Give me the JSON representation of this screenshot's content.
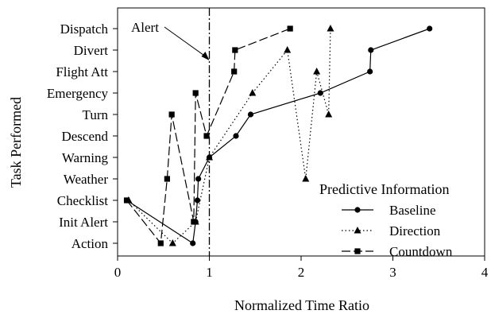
{
  "chart_data": {
    "type": "line",
    "xlabel": "Normalized Time Ratio",
    "ylabel": "Task Performed",
    "xlim": [
      0,
      4
    ],
    "x_ticks": [
      0,
      1,
      2,
      3,
      4
    ],
    "x_tick_labels": [
      "0",
      "1",
      "2",
      "3",
      "4"
    ],
    "categories": [
      "Action",
      "Init Alert",
      "Checklist",
      "Weather",
      "Warning",
      "Descend",
      "Turn",
      "Emergency",
      "Flight Att",
      "Divert",
      "Dispatch"
    ],
    "grid": false,
    "legend": {
      "title": "Predictive Information",
      "placement": "bottom-right"
    },
    "reference_line": {
      "x": 1.0,
      "style": "dash-dot",
      "label": "Alert"
    },
    "series": [
      {
        "name": "Baseline",
        "marker": "circle",
        "line_style": "solid",
        "points": [
          {
            "x": 0.1,
            "y": "Checklist"
          },
          {
            "x": 0.82,
            "y": "Action"
          },
          {
            "x": 0.85,
            "y": "Init Alert"
          },
          {
            "x": 0.87,
            "y": "Checklist"
          },
          {
            "x": 0.88,
            "y": "Weather"
          },
          {
            "x": 1.0,
            "y": "Warning"
          },
          {
            "x": 1.29,
            "y": "Descend"
          },
          {
            "x": 1.45,
            "y": "Turn"
          },
          {
            "x": 2.21,
            "y": "Emergency"
          },
          {
            "x": 2.75,
            "y": "Flight Att"
          },
          {
            "x": 2.76,
            "y": "Divert"
          },
          {
            "x": 3.4,
            "y": "Dispatch"
          }
        ]
      },
      {
        "name": "Direction",
        "marker": "triangle",
        "line_style": "dotted",
        "points": [
          {
            "x": 0.12,
            "y": "Checklist"
          },
          {
            "x": 0.6,
            "y": "Action"
          },
          {
            "x": 0.85,
            "y": "Init Alert"
          },
          {
            "x": 1.0,
            "y": "Warning"
          },
          {
            "x": 1.47,
            "y": "Emergency"
          },
          {
            "x": 1.85,
            "y": "Divert"
          },
          {
            "x": 2.05,
            "y": "Weather"
          },
          {
            "x": 2.17,
            "y": "Flight Att"
          },
          {
            "x": 2.3,
            "y": "Turn"
          },
          {
            "x": 2.32,
            "y": "Dispatch"
          }
        ]
      },
      {
        "name": "Countdown",
        "marker": "square",
        "line_style": "long-dash",
        "points": [
          {
            "x": 0.1,
            "y": "Checklist"
          },
          {
            "x": 0.47,
            "y": "Action"
          },
          {
            "x": 0.54,
            "y": "Weather"
          },
          {
            "x": 0.59,
            "y": "Turn"
          },
          {
            "x": 0.83,
            "y": "Init Alert"
          },
          {
            "x": 0.85,
            "y": "Emergency"
          },
          {
            "x": 0.97,
            "y": "Descend"
          },
          {
            "x": 1.27,
            "y": "Flight Att"
          },
          {
            "x": 1.28,
            "y": "Divert"
          },
          {
            "x": 1.88,
            "y": "Dispatch"
          }
        ]
      }
    ]
  }
}
